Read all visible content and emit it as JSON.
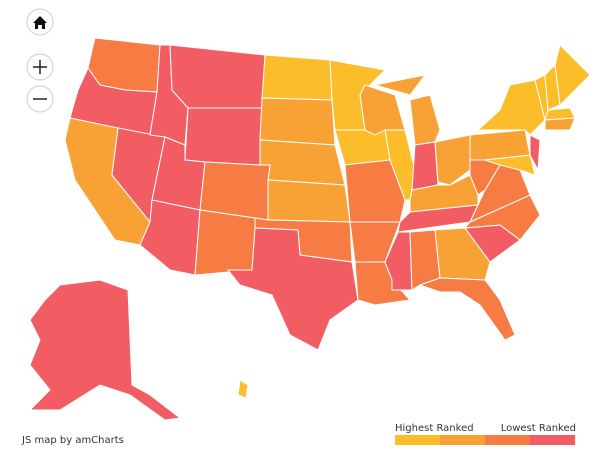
{
  "map": {
    "credit": "JS map by amCharts",
    "legend": {
      "high_label": "Highest Ranked",
      "low_label": "Lowest Ranked",
      "colors": [
        "#fbbd2a",
        "#f8a236",
        "#f67c44",
        "#f25d63"
      ]
    },
    "region_bands": [
      2,
      3,
      1,
      3,
      3,
      3,
      3,
      3,
      3,
      2,
      2,
      0,
      1,
      1,
      1,
      2,
      3,
      0,
      0,
      2,
      2,
      2,
      1,
      0,
      1,
      1,
      3,
      1,
      1,
      3,
      3,
      2,
      1,
      2,
      3,
      2,
      2,
      2,
      1,
      0,
      0,
      3,
      0,
      0,
      0,
      0,
      1,
      3,
      0
    ]
  }
}
